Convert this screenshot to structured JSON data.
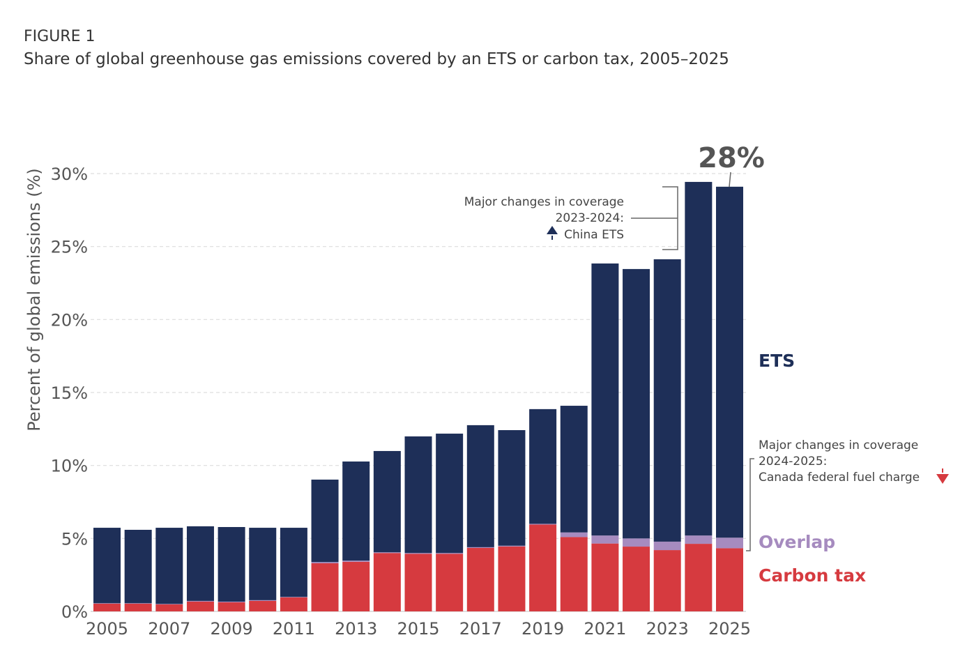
{
  "figure_label": "FIGURE 1",
  "title": "Share of global greenhouse gas emissions covered by an ETS or carbon tax, 2005–2025",
  "chart_data": {
    "type": "bar",
    "stacked": true,
    "ylabel": "Percent of global emissions (%)",
    "ylim": [
      0,
      30
    ],
    "yticks": [
      "0%",
      "5%",
      "10%",
      "15%",
      "20%",
      "25%",
      "30%"
    ],
    "grid": true,
    "categories": [
      "2005",
      "2006",
      "2007",
      "2008",
      "2009",
      "2010",
      "2011",
      "2012",
      "2013",
      "2014",
      "2015",
      "2016",
      "2017",
      "2018",
      "2019",
      "2020",
      "2021",
      "2022",
      "2023",
      "2024",
      "2025"
    ],
    "xtick_labels": [
      "2005",
      "2007",
      "2009",
      "2011",
      "2013",
      "2015",
      "2017",
      "2019",
      "2021",
      "2023",
      "2025"
    ],
    "series": [
      {
        "name": "Carbon tax",
        "color": "#d63a3f",
        "values": [
          0.53,
          0.53,
          0.48,
          0.67,
          0.62,
          0.72,
          0.96,
          3.3,
          3.4,
          4.0,
          3.95,
          3.95,
          4.35,
          4.45,
          5.95,
          5.09,
          4.65,
          4.44,
          4.2,
          4.63,
          4.33
        ]
      },
      {
        "name": "Overlap",
        "color": "#a68bbf",
        "values": [
          0.03,
          0.03,
          0.03,
          0.05,
          0.05,
          0.05,
          0.03,
          0.08,
          0.08,
          0.05,
          0.05,
          0.05,
          0.05,
          0.05,
          0.05,
          0.32,
          0.55,
          0.56,
          0.58,
          0.57,
          0.72
        ]
      },
      {
        "name": "ETS",
        "color": "#1e2f58",
        "values": [
          5.17,
          5.03,
          5.22,
          5.11,
          5.11,
          4.96,
          4.74,
          5.65,
          6.79,
          6.94,
          7.99,
          8.18,
          8.36,
          7.92,
          7.86,
          8.68,
          18.64,
          18.46,
          19.35,
          24.23,
          24.05
        ]
      }
    ],
    "annotations": {
      "headline": "28%",
      "china_note": [
        "Major changes in coverage",
        "2023-2024:",
        "China ETS"
      ],
      "canada_note": [
        "Major changes in coverage",
        "2024-2025:",
        "Canada federal fuel charge"
      ]
    }
  }
}
